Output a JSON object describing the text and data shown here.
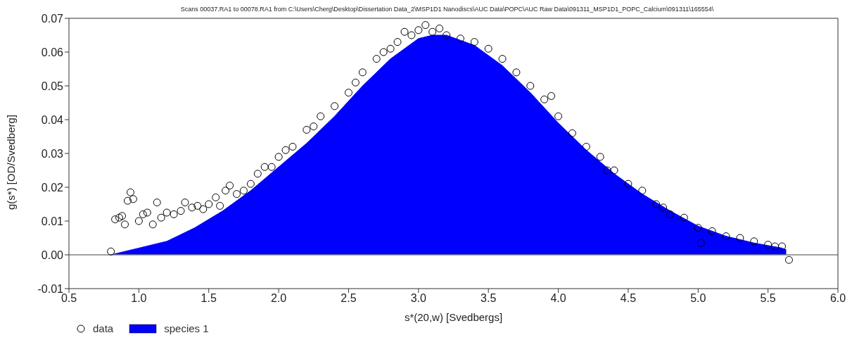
{
  "chart_data": {
    "type": "scatter",
    "title": "Scans 00037.RA1 to 00078.RA1 from C:\\Users\\Cherg\\Desktop\\Dissertation Data_2\\MSP1D1 Nanodiscs\\AUC Data\\POPC\\AUC Raw Data\\091311_MSP1D1_POPC_Calcium\\091311\\165554\\",
    "xlabel": "s*(20,w) [Svedbergs]",
    "ylabel": "g(s*) [OD/Svedberg]",
    "xlim": [
      0.5,
      6.0
    ],
    "xticks": [
      {
        "value": 0.5,
        "label": "0.5"
      },
      {
        "value": 1,
        "label": "1.0"
      },
      {
        "value": 1.5,
        "label": "1.5"
      },
      {
        "value": 2,
        "label": "2.0"
      },
      {
        "value": 2.5,
        "label": "2.5"
      },
      {
        "value": 3,
        "label": "3.0"
      },
      {
        "value": 3.5,
        "label": "3.5"
      },
      {
        "value": 4,
        "label": "4.0"
      },
      {
        "value": 4.5,
        "label": "4.5"
      },
      {
        "value": 5,
        "label": "5.0"
      },
      {
        "value": 5.5,
        "label": "5.5"
      },
      {
        "value": 6,
        "label": "6.0"
      }
    ],
    "ylim": [
      -0.01,
      0.07
    ],
    "yticks": [
      {
        "value": -0.01,
        "label": "-0.01"
      },
      {
        "value": 0,
        "label": "0.00"
      },
      {
        "value": 0.01,
        "label": "0.01"
      },
      {
        "value": 0.02,
        "label": "0.02"
      },
      {
        "value": 0.03,
        "label": "0.03"
      },
      {
        "value": 0.04,
        "label": "0.04"
      },
      {
        "value": 0.05,
        "label": "0.05"
      },
      {
        "value": 0.06,
        "label": "0.06"
      },
      {
        "value": 0.07,
        "label": "0.07"
      }
    ],
    "grid": false,
    "legend": "bottom left",
    "ref_lines": [
      {
        "axis": "y",
        "value": 0,
        "color": "#808080"
      }
    ],
    "series": [
      {
        "name": "data",
        "color": "#000000",
        "marker": "circle",
        "x": [
          0.8,
          0.83,
          0.86,
          0.88,
          0.9,
          0.92,
          0.94,
          0.96,
          1.0,
          1.03,
          1.06,
          1.1,
          1.13,
          1.16,
          1.2,
          1.25,
          1.3,
          1.33,
          1.38,
          1.42,
          1.46,
          1.5,
          1.55,
          1.58,
          1.62,
          1.65,
          1.7,
          1.75,
          1.8,
          1.85,
          1.9,
          1.95,
          2.0,
          2.05,
          2.1,
          2.2,
          2.25,
          2.3,
          2.4,
          2.5,
          2.55,
          2.6,
          2.7,
          2.75,
          2.8,
          2.85,
          2.9,
          2.95,
          3.0,
          3.05,
          3.1,
          3.15,
          3.2,
          3.3,
          3.4,
          3.5,
          3.6,
          3.7,
          3.8,
          3.9,
          3.95,
          4.0,
          4.1,
          4.2,
          4.3,
          4.35,
          4.4,
          4.5,
          4.6,
          4.7,
          4.75,
          4.8,
          4.9,
          5.0,
          5.02,
          5.1,
          5.2,
          5.3,
          5.4,
          5.5,
          5.55,
          5.6,
          5.65
        ],
        "values": [
          0.001,
          0.0105,
          0.011,
          0.0115,
          0.009,
          0.016,
          0.0185,
          0.0165,
          0.01,
          0.012,
          0.0125,
          0.009,
          0.0155,
          0.011,
          0.0125,
          0.012,
          0.013,
          0.0155,
          0.014,
          0.0145,
          0.0135,
          0.015,
          0.017,
          0.0145,
          0.019,
          0.0205,
          0.018,
          0.019,
          0.021,
          0.024,
          0.026,
          0.026,
          0.029,
          0.031,
          0.032,
          0.037,
          0.038,
          0.041,
          0.044,
          0.048,
          0.051,
          0.054,
          0.058,
          0.06,
          0.061,
          0.063,
          0.066,
          0.065,
          0.0665,
          0.068,
          0.066,
          0.067,
          0.065,
          0.064,
          0.063,
          0.061,
          0.058,
          0.054,
          0.05,
          0.046,
          0.047,
          0.041,
          0.036,
          0.032,
          0.029,
          0.025,
          0.025,
          0.021,
          0.019,
          0.015,
          0.014,
          0.012,
          0.011,
          0.008,
          0.0035,
          0.007,
          0.0055,
          0.005,
          0.004,
          0.003,
          0.0025,
          0.0025,
          -0.0015
        ]
      },
      {
        "name": "species 1",
        "type": "area",
        "color": "#0000ff",
        "x": [
          0.8,
          1.0,
          1.2,
          1.4,
          1.6,
          1.8,
          2.0,
          2.2,
          2.4,
          2.6,
          2.8,
          3.0,
          3.1,
          3.2,
          3.4,
          3.6,
          3.8,
          4.0,
          4.2,
          4.4,
          4.6,
          4.8,
          5.0,
          5.2,
          5.4,
          5.6,
          5.63
        ],
        "values": [
          0,
          0.002,
          0.004,
          0.008,
          0.013,
          0.019,
          0.026,
          0.033,
          0.041,
          0.05,
          0.058,
          0.064,
          0.065,
          0.065,
          0.062,
          0.056,
          0.048,
          0.039,
          0.031,
          0.024,
          0.018,
          0.013,
          0.0085,
          0.0055,
          0.0035,
          0.002,
          0.0015
        ]
      }
    ]
  }
}
